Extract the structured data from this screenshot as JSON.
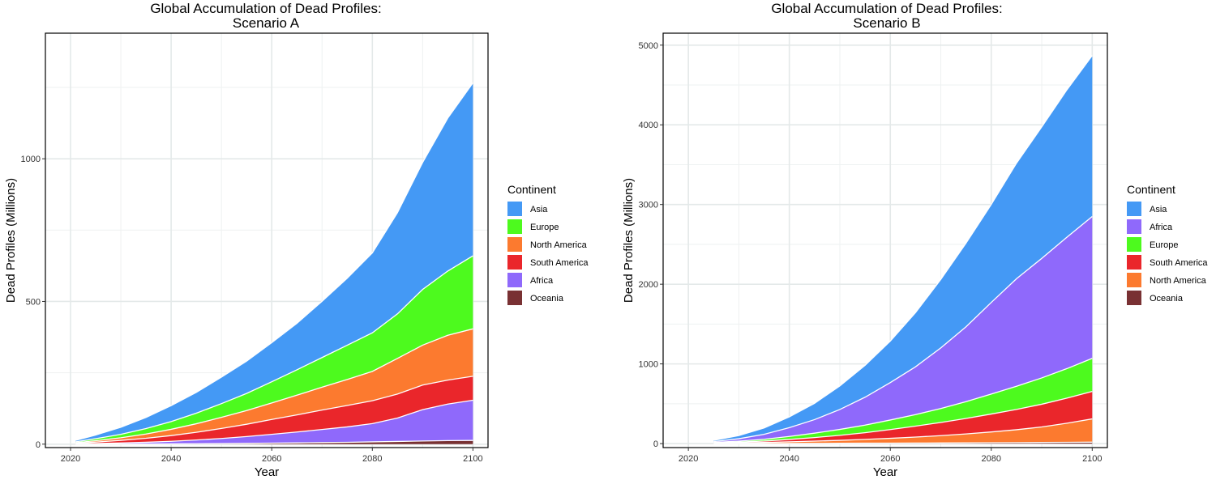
{
  "colors": {
    "Asia": "#4499f5",
    "Europe": "#4dfa1e",
    "North America": "#fc7a2f",
    "South America": "#ea262b",
    "Africa": "#8f69fb",
    "Oceania": "#793133"
  },
  "chart_data": [
    {
      "type": "area",
      "stacked": true,
      "title": [
        "Global Accumulation of Dead Profiles:",
        "Scenario A"
      ],
      "xlabel": "Year",
      "ylabel": "Dead Profiles (Millions)",
      "xlim": [
        2015,
        2103
      ],
      "ylim": [
        -12,
        1440
      ],
      "xticks": [
        2020,
        2040,
        2060,
        2080,
        2100
      ],
      "yticks": [
        0,
        500,
        1000
      ],
      "grid": true,
      "legend": {
        "title": "Continent",
        "position": "right",
        "entries": [
          "Asia",
          "Europe",
          "North America",
          "South America",
          "Africa",
          "Oceania"
        ]
      },
      "x": [
        2021,
        2025,
        2030,
        2035,
        2040,
        2045,
        2050,
        2055,
        2060,
        2065,
        2070,
        2075,
        2080,
        2085,
        2090,
        2095,
        2100
      ],
      "stack_order": [
        "Oceania",
        "Africa",
        "South America",
        "North America",
        "Europe",
        "Asia"
      ],
      "series": [
        {
          "name": "Oceania",
          "values": [
            0,
            0.1,
            0.3,
            0.6,
            1,
            1.5,
            2,
            2.7,
            3.5,
            4.5,
            5.5,
            6.5,
            8,
            9.5,
            11,
            12.5,
            13
          ]
        },
        {
          "name": "Africa",
          "values": [
            1,
            2,
            4,
            6,
            9,
            13,
            18,
            24,
            31,
            38,
            46,
            54,
            64,
            82,
            110,
            128,
            141
          ]
        },
        {
          "name": "South America",
          "values": [
            2,
            5,
            9,
            14,
            20,
            27,
            35,
            43,
            52,
            60,
            68,
            75,
            80,
            84,
            86,
            84,
            84
          ]
        },
        {
          "name": "North America",
          "values": [
            2,
            5,
            9,
            15,
            22,
            30,
            39,
            48,
            58,
            69,
            80,
            91,
            103,
            125,
            140,
            157,
            166
          ]
        },
        {
          "name": "Europe",
          "values": [
            3,
            7,
            12,
            19,
            27,
            37,
            48,
            60,
            74,
            89,
            104,
            120,
            135,
            156,
            195,
            225,
            256
          ]
        },
        {
          "name": "Asia",
          "values": [
            5,
            13,
            25,
            39,
            56,
            73,
            93,
            113,
            137,
            163,
            197,
            235,
            280,
            355,
            445,
            536,
            606
          ]
        }
      ]
    },
    {
      "type": "area",
      "stacked": true,
      "title": [
        "Global Accumulation of Dead Profiles:",
        "Scenario B"
      ],
      "xlabel": "Year",
      "ylabel": "Dead Profiles (Millions)",
      "xlim": [
        2015,
        2103
      ],
      "ylim": [
        -50,
        5150
      ],
      "xticks": [
        2020,
        2040,
        2060,
        2080,
        2100
      ],
      "yticks": [
        0,
        1000,
        2000,
        3000,
        4000,
        5000
      ],
      "grid": true,
      "legend": {
        "title": "Continent",
        "position": "right",
        "entries": [
          "Asia",
          "Africa",
          "Europe",
          "South America",
          "North America",
          "Oceania"
        ]
      },
      "x": [
        2025,
        2030,
        2035,
        2040,
        2045,
        2050,
        2055,
        2060,
        2065,
        2070,
        2075,
        2080,
        2085,
        2090,
        2095,
        2100
      ],
      "stack_order": [
        "Oceania",
        "North America",
        "South America",
        "Europe",
        "Africa",
        "Asia"
      ],
      "series": [
        {
          "name": "Oceania",
          "values": [
            0,
            1,
            1,
            2,
            3,
            4,
            5,
            6,
            7,
            8,
            9,
            11,
            12,
            14,
            16,
            18
          ]
        },
        {
          "name": "North America",
          "values": [
            4,
            8,
            13,
            20,
            28,
            37,
            48,
            60,
            75,
            92,
            112,
            135,
            162,
            195,
            240,
            292
          ]
        },
        {
          "name": "South America",
          "values": [
            5,
            10,
            18,
            30,
            45,
            63,
            84,
            110,
            137,
            165,
            195,
            225,
            255,
            285,
            315,
            345
          ]
        },
        {
          "name": "Europe",
          "values": [
            6,
            12,
            22,
            38,
            55,
            74,
            95,
            120,
            145,
            175,
            210,
            250,
            290,
            330,
            370,
            415
          ]
        },
        {
          "name": "Africa",
          "values": [
            10,
            30,
            62,
            110,
            170,
            250,
            350,
            470,
            600,
            760,
            940,
            1150,
            1350,
            1500,
            1650,
            1780
          ]
        },
        {
          "name": "Asia",
          "values": [
            15,
            40,
            80,
            135,
            205,
            295,
            400,
            520,
            680,
            860,
            1050,
            1230,
            1450,
            1650,
            1850,
            2020
          ]
        }
      ]
    }
  ]
}
